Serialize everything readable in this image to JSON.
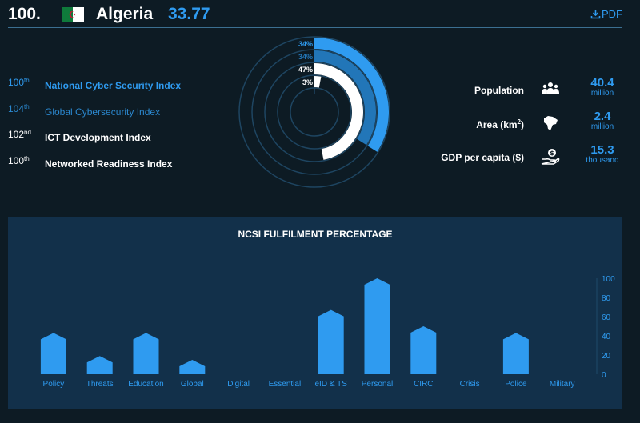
{
  "header": {
    "rank": "100.",
    "country": "Algeria",
    "score": "33.77",
    "pdf_label": "PDF",
    "flag_colors": {
      "green": "#0f7a3b",
      "white": "#ffffff",
      "red": "#d21034"
    }
  },
  "indices": [
    {
      "rank": "100",
      "suffix": "th",
      "name": "National Cyber Security Index",
      "color": "#2f9bf0"
    },
    {
      "rank": "104",
      "suffix": "th",
      "name": "Global Cybersecurity Index",
      "color": "#2b88cf"
    },
    {
      "rank": "102",
      "suffix": "nd",
      "name": "ICT Development Index",
      "color": "#ffffff"
    },
    {
      "rank": "100",
      "suffix": "th",
      "name": "Networked Readiness Index",
      "color": "#ffffff"
    }
  ],
  "rings": [
    {
      "label": "34%",
      "value": 34,
      "color": "#2f9bf0"
    },
    {
      "label": "34%",
      "value": 34,
      "color": "#2276b8"
    },
    {
      "label": "47%",
      "value": 47,
      "color": "#ffffff"
    },
    {
      "label": "3%",
      "value": 3,
      "color": "#ffffff"
    }
  ],
  "stats": [
    {
      "label": "Population",
      "label_sup": "",
      "label_end": "",
      "icon": "people-icon",
      "value": "40.4",
      "unit": "million"
    },
    {
      "label": "Area (km",
      "label_sup": "2",
      "label_end": ")",
      "icon": "map-icon",
      "value": "2.4",
      "unit": "million"
    },
    {
      "label": "GDP per capita ($)",
      "label_sup": "",
      "label_end": "",
      "icon": "money-hand-icon",
      "value": "15.3",
      "unit": "thousand"
    }
  ],
  "chart_data": {
    "type": "bar",
    "title": "NCSI FULFILMENT PERCENTAGE",
    "categories": [
      "Policy",
      "Threats",
      "Education",
      "Global",
      "Digital",
      "Essential",
      "eID & TS",
      "Personal",
      "CIRC",
      "Crisis",
      "Police",
      "Military"
    ],
    "values": [
      43,
      19,
      43,
      15,
      0,
      0,
      67,
      100,
      50,
      0,
      43,
      0
    ],
    "ylim": [
      0,
      100
    ],
    "yticks": [
      0,
      20,
      40,
      60,
      80,
      100
    ],
    "bar_color": "#2f9bf0",
    "grid": false
  }
}
